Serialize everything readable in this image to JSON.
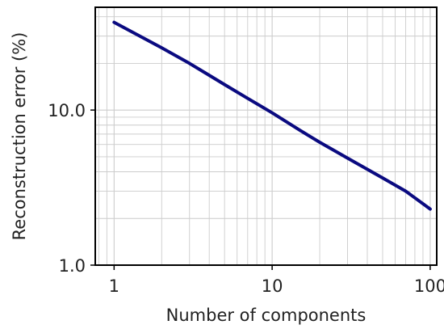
{
  "chart_data": {
    "type": "line",
    "title": "",
    "xlabel": "Number of components",
    "ylabel": "Reconstruction error (%)",
    "x_scale": "log",
    "y_scale": "log",
    "xlim": [
      0.76,
      110
    ],
    "ylim": [
      1.0,
      46
    ],
    "x_ticks": [
      {
        "value": 1,
        "label": "1"
      },
      {
        "value": 10,
        "label": "10"
      },
      {
        "value": 100,
        "label": "100"
      }
    ],
    "y_ticks": [
      {
        "value": 1,
        "label": "1.0"
      },
      {
        "value": 10,
        "label": "10.0"
      }
    ],
    "grid": true,
    "legend": "none",
    "series": [
      {
        "color": "#0a0a80",
        "x": [
          1,
          2,
          3,
          5,
          7,
          10,
          15,
          20,
          30,
          50,
          70,
          100
        ],
        "y": [
          36.8,
          25.2,
          20.0,
          14.6,
          11.9,
          9.6,
          7.4,
          6.2,
          4.9,
          3.65,
          3.0,
          2.3
        ]
      }
    ],
    "colors": {
      "line": "#0a0a80",
      "grid": "#cccccc",
      "frame": "#000000"
    }
  }
}
